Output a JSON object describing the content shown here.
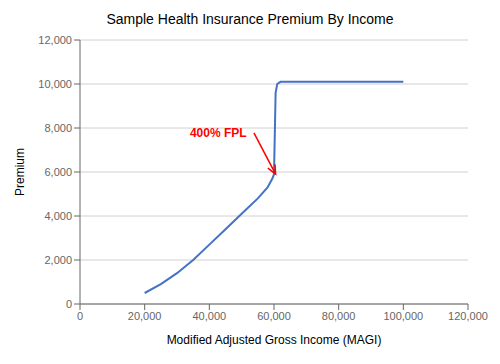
{
  "chart_data": {
    "type": "line",
    "title": "Sample Health Insurance Premium By Income",
    "x_label": "Modified Adjusted Gross Income (MAGI)",
    "y_label": "Premium",
    "x": [
      20000,
      25000,
      30000,
      35000,
      40000,
      45000,
      50000,
      55000,
      58000,
      59500,
      60000,
      60000,
      60500,
      61000,
      62000,
      63000,
      65000,
      80000,
      100000
    ],
    "values": [
      500,
      900,
      1400,
      2000,
      2700,
      3400,
      4100,
      4800,
      5300,
      5700,
      5900,
      5900,
      9600,
      10000,
      10100,
      10100,
      10100,
      10100,
      10100
    ],
    "color": "#4472C4",
    "xlim": [
      0,
      120000
    ],
    "ylim": [
      0,
      12000
    ],
    "xticks": [
      0,
      {
        "value": 20000,
        "label": "20,000"
      },
      {
        "value": 40000,
        "label": "40,000"
      },
      {
        "value": 60000,
        "label": "60,000"
      },
      {
        "value": 80000,
        "label": "80,000"
      },
      {
        "value": 100000,
        "label": "100,000"
      },
      {
        "value": 120000,
        "label": "120,000"
      }
    ],
    "yticks": [
      0,
      {
        "value": 2000,
        "label": "2,000"
      },
      {
        "value": 4000,
        "label": "4,000"
      },
      {
        "value": 6000,
        "label": "6,000"
      },
      {
        "value": 8000,
        "label": "8,000"
      },
      {
        "value": 10000,
        "label": "10,000"
      },
      {
        "value": 12000,
        "label": "12,000"
      }
    ],
    "grid": "y",
    "annotations": [
      {
        "text": "400% FPL",
        "x": 34000,
        "y": 7600,
        "arrow_x": 60500,
        "arrow_y": 5900,
        "color": "red"
      }
    ]
  }
}
